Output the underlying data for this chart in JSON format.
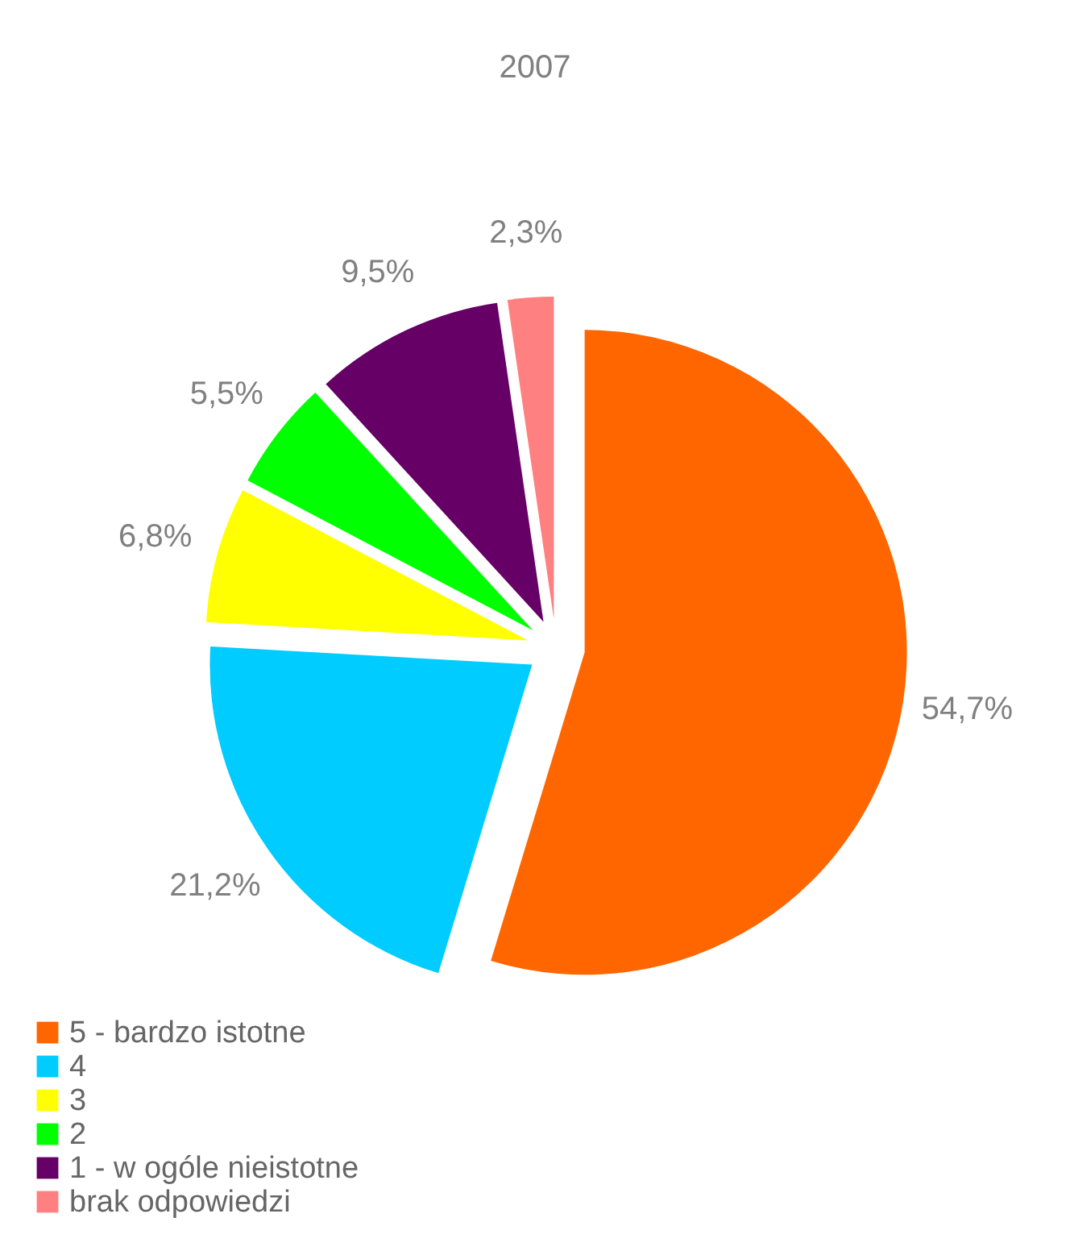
{
  "chart_data": {
    "type": "pie",
    "title": "2007",
    "categories": [
      "5 - bardzo istotne",
      "4",
      "3",
      "2",
      "1 - w ogóle nieistotne",
      "brak odpowiedzi"
    ],
    "values": [
      54.7,
      21.2,
      6.8,
      5.5,
      9.5,
      2.3
    ],
    "colors": [
      "#ff6600",
      "#00ccff",
      "#ffff00",
      "#00ff00",
      "#660066",
      "#ff8080"
    ],
    "value_labels": [
      "54,7%",
      "21,2%",
      "6,8%",
      "5,5%",
      "9,5%",
      "2,3%"
    ],
    "legend": "bottom left"
  }
}
